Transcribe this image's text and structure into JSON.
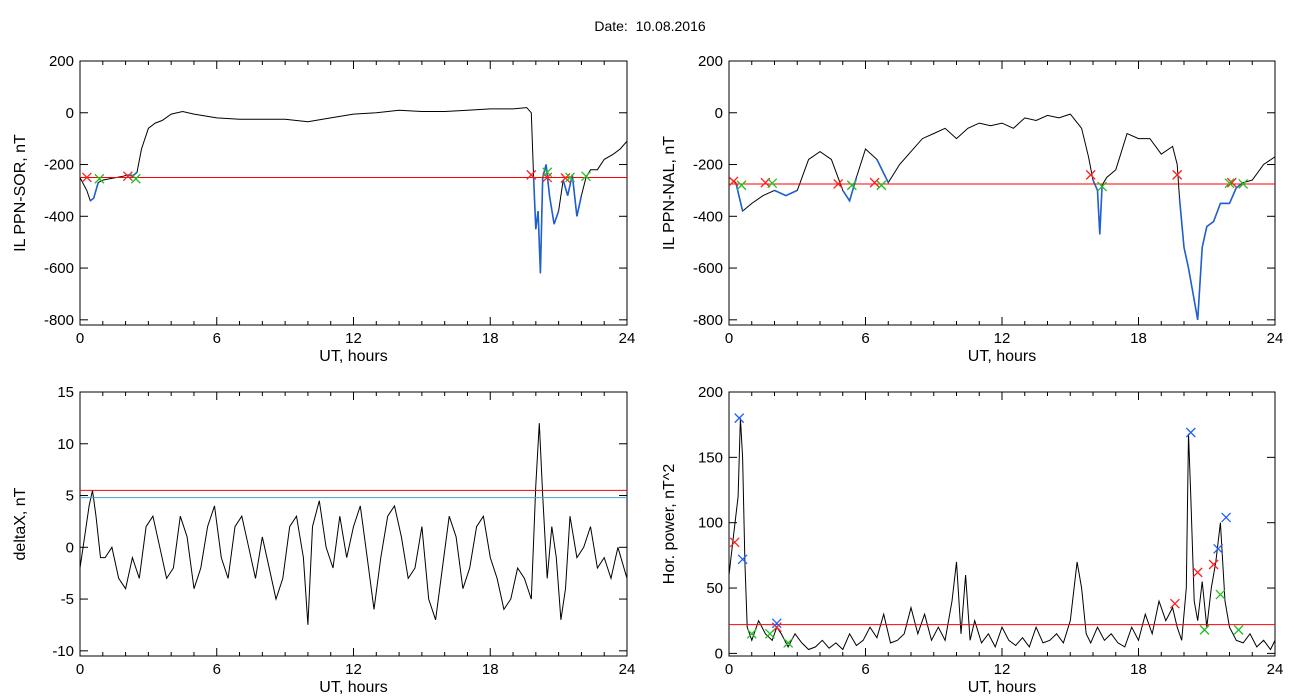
{
  "figure_title": "Date:  10.08.2016",
  "colors": {
    "trace": "#000000",
    "interval": "#1f5fd0",
    "threshold": "#ff0000",
    "threshold2": "#4a9fd0",
    "start_marker": "#ff2020",
    "end_marker": "#20c020",
    "peak_marker": "#2060ff"
  },
  "chart_data": [
    {
      "id": "ppn-sor",
      "type": "line",
      "xlabel": "UT, hours",
      "ylabel": "IL PPN-SOR, nT",
      "xlim": [
        0,
        24
      ],
      "ylim": [
        -820,
        200
      ],
      "xticks": [
        0,
        6,
        12,
        18,
        24
      ],
      "yticks": [
        -800,
        -600,
        -400,
        -200,
        0,
        200
      ],
      "grid": false,
      "series": [
        {
          "x": [
            0,
            0.3,
            0.45,
            0.6,
            0.8,
            1.0,
            1.3,
            1.6,
            1.9,
            2.1,
            2.3,
            2.5,
            2.7,
            3.0,
            3.3,
            3.6,
            4.0,
            4.5,
            5.0,
            6.0,
            7.0,
            8.0,
            9.0,
            10.0,
            11.0,
            12.0,
            13.0,
            14.0,
            15.0,
            16.0,
            17.0,
            18.0,
            19.0,
            19.6,
            19.8,
            19.9,
            20.0,
            20.1,
            20.2,
            20.3,
            20.45,
            20.6,
            20.8,
            21.0,
            21.2,
            21.4,
            21.6,
            21.8,
            22.0,
            22.2,
            22.4,
            22.7,
            23.0,
            23.4,
            23.7,
            24.0
          ],
          "y": [
            -250,
            -300,
            -340,
            -330,
            -270,
            -260,
            -255,
            -250,
            -245,
            -240,
            -245,
            -230,
            -140,
            -60,
            -40,
            -30,
            -5,
            5,
            -5,
            -20,
            -25,
            -25,
            -25,
            -35,
            -20,
            -5,
            0,
            10,
            5,
            5,
            10,
            15,
            15,
            20,
            0,
            -250,
            -450,
            -380,
            -620,
            -250,
            -200,
            -320,
            -430,
            -380,
            -260,
            -320,
            -240,
            -400,
            -320,
            -250,
            -220,
            -220,
            -180,
            -160,
            -140,
            -110
          ]
        }
      ],
      "interval_x": [
        [
          0.35,
          0.8
        ],
        [
          2.0,
          2.5
        ],
        [
          19.85,
          21.0
        ],
        [
          21.1,
          22.0
        ]
      ],
      "thresholds": [
        -250
      ],
      "start_points": [
        {
          "x": 0.3,
          "y": -250
        },
        {
          "x": 2.1,
          "y": -245
        },
        {
          "x": 19.8,
          "y": -240
        },
        {
          "x": 20.5,
          "y": -250
        },
        {
          "x": 21.3,
          "y": -252
        }
      ],
      "end_points": [
        {
          "x": 0.85,
          "y": -255
        },
        {
          "x": 2.45,
          "y": -255
        },
        {
          "x": 20.5,
          "y": -230
        },
        {
          "x": 21.5,
          "y": -250
        },
        {
          "x": 22.2,
          "y": -245
        }
      ]
    },
    {
      "id": "ppn-nal",
      "type": "line",
      "xlabel": "UT, hours",
      "ylabel": "IL PPN-NAL, nT",
      "xlim": [
        0,
        24
      ],
      "ylim": [
        -820,
        200
      ],
      "xticks": [
        0,
        6,
        12,
        18,
        24
      ],
      "yticks": [
        -800,
        -600,
        -400,
        -200,
        0,
        200
      ],
      "grid": false,
      "series": [
        {
          "x": [
            0,
            0.3,
            0.6,
            1.0,
            1.5,
            2.0,
            2.5,
            3.0,
            3.5,
            4.0,
            4.5,
            5.0,
            5.3,
            5.6,
            6.0,
            6.5,
            7.0,
            7.5,
            8.0,
            8.5,
            9.0,
            9.5,
            10.0,
            10.5,
            11.0,
            11.5,
            12.0,
            12.5,
            13.0,
            13.5,
            14.0,
            14.5,
            15.0,
            15.5,
            15.8,
            16.0,
            16.2,
            16.3,
            16.4,
            16.6,
            17.0,
            17.5,
            18.0,
            18.5,
            19.0,
            19.5,
            19.7,
            19.8,
            20.0,
            20.2,
            20.4,
            20.6,
            20.8,
            21.0,
            21.3,
            21.6,
            22.0,
            22.3,
            22.6,
            23.0,
            23.5,
            24.0
          ],
          "y": [
            -250,
            -270,
            -380,
            -350,
            -320,
            -300,
            -320,
            -300,
            -180,
            -150,
            -180,
            -300,
            -340,
            -250,
            -140,
            -180,
            -270,
            -200,
            -150,
            -100,
            -80,
            -60,
            -100,
            -60,
            -40,
            -50,
            -40,
            -60,
            -20,
            -30,
            -10,
            -20,
            -5,
            -60,
            -170,
            -260,
            -300,
            -470,
            -280,
            -250,
            -220,
            -80,
            -100,
            -100,
            -160,
            -130,
            -200,
            -330,
            -520,
            -600,
            -700,
            -800,
            -520,
            -440,
            -420,
            -350,
            -350,
            -290,
            -270,
            -260,
            -200,
            -170
          ]
        }
      ],
      "interval_x": [
        [
          0.2,
          0.6
        ],
        [
          1.7,
          3.0
        ],
        [
          4.8,
          5.6
        ],
        [
          6.4,
          7.0
        ],
        [
          15.9,
          16.5
        ],
        [
          19.75,
          22.0
        ],
        [
          22.0,
          22.7
        ]
      ],
      "thresholds": [
        -275
      ],
      "start_points": [
        {
          "x": 0.2,
          "y": -265
        },
        {
          "x": 1.6,
          "y": -270
        },
        {
          "x": 4.8,
          "y": -275
        },
        {
          "x": 6.4,
          "y": -270
        },
        {
          "x": 15.9,
          "y": -240
        },
        {
          "x": 19.7,
          "y": -240
        },
        {
          "x": 22.1,
          "y": -270
        }
      ],
      "end_points": [
        {
          "x": 0.55,
          "y": -280
        },
        {
          "x": 1.9,
          "y": -272
        },
        {
          "x": 5.4,
          "y": -280
        },
        {
          "x": 6.7,
          "y": -280
        },
        {
          "x": 16.4,
          "y": -285
        },
        {
          "x": 22.0,
          "y": -272
        },
        {
          "x": 22.6,
          "y": -275
        }
      ]
    },
    {
      "id": "deltax",
      "type": "line",
      "xlabel": "UT, hours",
      "ylabel": "deltaX, nT",
      "xlim": [
        0,
        24
      ],
      "ylim": [
        -10.5,
        15
      ],
      "xticks": [
        0,
        6,
        12,
        18,
        24
      ],
      "yticks": [
        -10,
        -5,
        0,
        5,
        10,
        15
      ],
      "grid": false,
      "series": [
        {
          "x": [
            0,
            0.2,
            0.4,
            0.55,
            0.7,
            0.9,
            1.1,
            1.4,
            1.7,
            2.0,
            2.3,
            2.6,
            2.9,
            3.2,
            3.5,
            3.8,
            4.1,
            4.4,
            4.7,
            5.0,
            5.3,
            5.6,
            5.9,
            6.2,
            6.5,
            6.8,
            7.1,
            7.4,
            7.7,
            8.0,
            8.3,
            8.6,
            8.9,
            9.2,
            9.5,
            9.8,
            10.0,
            10.2,
            10.5,
            10.8,
            11.1,
            11.4,
            11.7,
            12.0,
            12.3,
            12.6,
            12.9,
            13.2,
            13.5,
            13.8,
            14.1,
            14.4,
            14.7,
            15.0,
            15.3,
            15.6,
            15.9,
            16.2,
            16.5,
            16.8,
            17.1,
            17.4,
            17.7,
            18.0,
            18.3,
            18.6,
            18.9,
            19.2,
            19.5,
            19.8,
            20.0,
            20.15,
            20.3,
            20.5,
            20.7,
            20.9,
            21.1,
            21.3,
            21.5,
            21.8,
            22.1,
            22.4,
            22.7,
            23.0,
            23.3,
            23.6,
            24.0
          ],
          "y": [
            -2,
            1,
            4,
            5.5,
            3,
            -1,
            -1,
            0,
            -3,
            -4,
            -1,
            -3,
            2,
            3,
            0,
            -3,
            -2,
            3,
            1,
            -4,
            -2,
            2,
            4,
            -1,
            -3,
            2,
            3,
            0,
            -3,
            1,
            -2,
            -5,
            -3,
            2,
            3,
            -1,
            -7.5,
            2,
            4.5,
            0,
            -2,
            3,
            -1,
            2,
            4,
            -1,
            -6,
            -1,
            3,
            4,
            1,
            -3,
            -2,
            2,
            -5,
            -7,
            -2,
            3,
            1,
            -4,
            -2,
            2,
            3,
            -1,
            -3,
            -6,
            -5,
            -2,
            -3,
            -5,
            6,
            12,
            5,
            -3,
            2,
            -1,
            -7,
            -4,
            3,
            -1,
            0,
            2,
            -2,
            -1,
            -3,
            0,
            -3
          ]
        }
      ],
      "thresholds": [
        5.5,
        4.8
      ]
    },
    {
      "id": "hor-power",
      "type": "line",
      "xlabel": "UT, hours",
      "ylabel": "Hor. power, nT^2",
      "xlim": [
        0,
        24
      ],
      "ylim": [
        -2,
        200
      ],
      "xticks": [
        0,
        6,
        12,
        18,
        24
      ],
      "yticks": [
        0,
        50,
        100,
        150,
        200
      ],
      "grid": false,
      "series": [
        {
          "x": [
            0,
            0.2,
            0.4,
            0.5,
            0.6,
            0.7,
            0.8,
            1.0,
            1.3,
            1.6,
            1.9,
            2.1,
            2.3,
            2.6,
            2.9,
            3.2,
            3.5,
            3.8,
            4.1,
            4.4,
            4.7,
            5.0,
            5.3,
            5.6,
            5.9,
            6.2,
            6.5,
            6.8,
            7.1,
            7.4,
            7.7,
            8.0,
            8.3,
            8.6,
            8.9,
            9.2,
            9.5,
            9.8,
            10.0,
            10.2,
            10.4,
            10.6,
            10.8,
            11.1,
            11.4,
            11.7,
            12.0,
            12.3,
            12.6,
            12.9,
            13.2,
            13.5,
            13.8,
            14.1,
            14.4,
            14.7,
            15.0,
            15.3,
            15.5,
            15.7,
            15.9,
            16.2,
            16.5,
            16.8,
            17.1,
            17.4,
            17.7,
            18.0,
            18.3,
            18.6,
            18.9,
            19.2,
            19.5,
            19.7,
            19.9,
            20.1,
            20.2,
            20.3,
            20.45,
            20.6,
            20.8,
            21.0,
            21.2,
            21.4,
            21.6,
            21.8,
            22.0,
            22.3,
            22.6,
            22.9,
            23.2,
            23.5,
            23.8,
            24.0
          ],
          "y": [
            60,
            90,
            120,
            180,
            150,
            70,
            20,
            10,
            25,
            15,
            10,
            20,
            15,
            5,
            15,
            8,
            3,
            5,
            10,
            4,
            8,
            3,
            15,
            6,
            10,
            20,
            12,
            30,
            8,
            10,
            15,
            35,
            15,
            30,
            10,
            20,
            10,
            40,
            70,
            15,
            60,
            10,
            25,
            8,
            15,
            5,
            20,
            10,
            6,
            12,
            5,
            20,
            8,
            10,
            15,
            8,
            25,
            70,
            50,
            15,
            8,
            20,
            10,
            15,
            8,
            5,
            20,
            10,
            30,
            15,
            40,
            25,
            35,
            20,
            10,
            50,
            168,
            120,
            40,
            25,
            55,
            20,
            50,
            70,
            100,
            40,
            20,
            10,
            8,
            15,
            5,
            10,
            3,
            10
          ]
        }
      ],
      "thresholds": [
        22
      ],
      "start_points": [
        {
          "x": 0.25,
          "y": 85
        },
        {
          "x": 2.1,
          "y": 20
        },
        {
          "x": 19.6,
          "y": 38
        },
        {
          "x": 20.6,
          "y": 62
        },
        {
          "x": 21.3,
          "y": 68
        }
      ],
      "end_points": [
        {
          "x": 1.0,
          "y": 15
        },
        {
          "x": 1.8,
          "y": 15
        },
        {
          "x": 2.6,
          "y": 8
        },
        {
          "x": 20.9,
          "y": 18
        },
        {
          "x": 21.6,
          "y": 45
        },
        {
          "x": 22.4,
          "y": 18
        }
      ],
      "peak_points": [
        {
          "x": 0.45,
          "y": 180
        },
        {
          "x": 0.6,
          "y": 72
        },
        {
          "x": 2.1,
          "y": 23
        },
        {
          "x": 20.3,
          "y": 169
        },
        {
          "x": 21.5,
          "y": 80
        },
        {
          "x": 21.85,
          "y": 104
        }
      ]
    }
  ]
}
